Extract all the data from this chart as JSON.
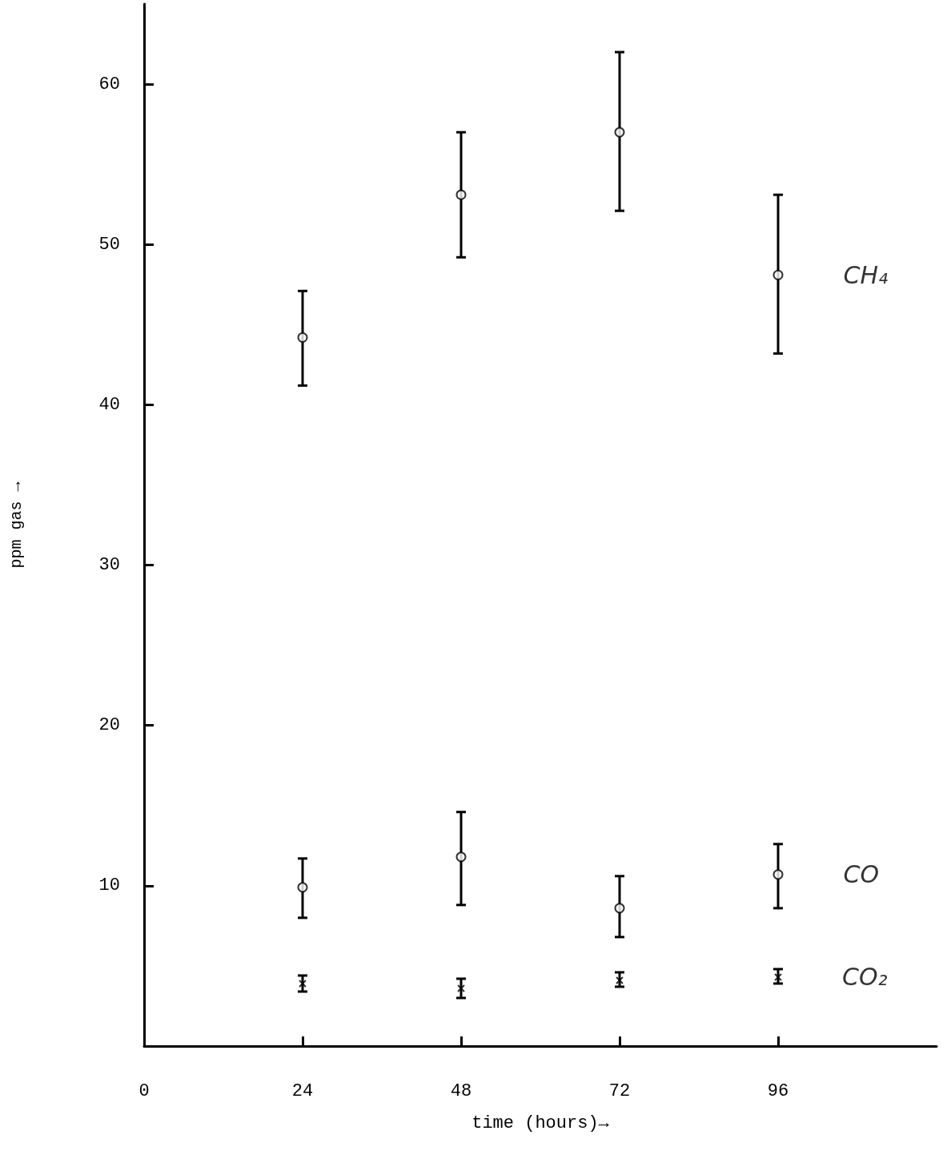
{
  "chart_data": {
    "type": "scatter",
    "xlabel": "time (hours)→",
    "ylabel": "ppm gas →",
    "x": [
      24,
      48,
      72,
      96
    ],
    "xlim": [
      0,
      120
    ],
    "xticks": [
      0,
      24,
      48,
      72,
      96
    ],
    "ylim": [
      0,
      65
    ],
    "yticks": [
      10,
      20,
      30,
      40,
      50,
      60
    ],
    "grid": false,
    "legend": false,
    "series": [
      {
        "name": "CH₄",
        "color": "#000000",
        "marker": "circle",
        "values": [
          44.2,
          53.1,
          57.0,
          48.1
        ],
        "errors": [
          [
            41.2,
            47.1
          ],
          [
            49.2,
            57.0
          ],
          [
            52.1,
            62.0
          ],
          [
            43.2,
            53.1
          ]
        ]
      },
      {
        "name": "CO",
        "color": "#000000",
        "marker": "circle",
        "values": [
          9.9,
          11.8,
          8.6,
          10.7
        ],
        "errors": [
          [
            8.0,
            11.7
          ],
          [
            8.8,
            14.6
          ],
          [
            6.8,
            10.6
          ],
          [
            8.6,
            12.6
          ]
        ]
      },
      {
        "name": "CO₂",
        "color": "#000000",
        "marker": "cross",
        "values": [
          3.9,
          3.6,
          4.1,
          4.3
        ],
        "errors": [
          [
            3.4,
            4.4
          ],
          [
            3.0,
            4.2
          ],
          [
            3.7,
            4.6
          ],
          [
            3.9,
            4.8
          ]
        ]
      }
    ]
  }
}
